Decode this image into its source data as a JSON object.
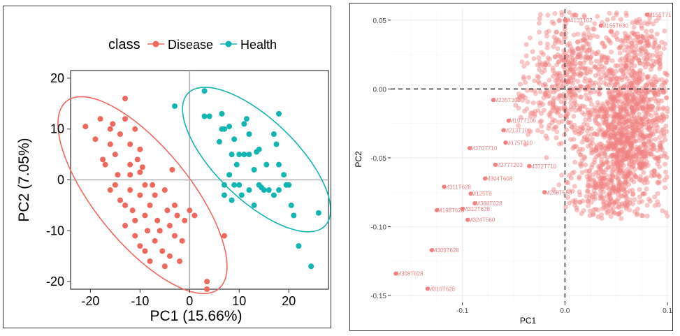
{
  "chart_data": [
    {
      "type": "scatter",
      "xlabel": "PC1 (15.66%)",
      "ylabel": "PC2 (7.05%)",
      "xlim": [
        -24,
        28
      ],
      "ylim": [
        -21.5,
        21.5
      ],
      "xticks": [
        -20,
        -10,
        0,
        10,
        20
      ],
      "yticks": [
        20,
        10,
        0,
        -10,
        -20
      ],
      "grid": false,
      "legend": {
        "title": "class",
        "position": "top-right"
      },
      "colors": {
        "Disease": "#f0685d",
        "Health": "#13b5b1"
      },
      "series": [
        {
          "name": "Disease",
          "color": "#f0685d",
          "points": [
            [
              -21,
              10.5
            ],
            [
              -19,
              8
            ],
            [
              -18,
              12
            ],
            [
              -17.5,
              4
            ],
            [
              -17,
              3
            ],
            [
              -16,
              10
            ],
            [
              -16,
              7
            ],
            [
              -16,
              -2
            ],
            [
              -15.5,
              11
            ],
            [
              -15,
              5
            ],
            [
              -15,
              -1
            ],
            [
              -14.5,
              1
            ],
            [
              -14,
              9
            ],
            [
              -14,
              -4
            ],
            [
              -13,
              16
            ],
            [
              -13,
              12
            ],
            [
              -13,
              -5
            ],
            [
              -13,
              -9
            ],
            [
              -12,
              7
            ],
            [
              -12,
              3
            ],
            [
              -12,
              1
            ],
            [
              -12,
              -2
            ],
            [
              -11.5,
              -6
            ],
            [
              -11,
              10
            ],
            [
              -11,
              -8
            ],
            [
              -11,
              -11
            ],
            [
              -10.5,
              4
            ],
            [
              -10,
              6
            ],
            [
              -10,
              1.5
            ],
            [
              -10,
              -3
            ],
            [
              -10,
              -13
            ],
            [
              -9.5,
              2.5
            ],
            [
              -9,
              -1
            ],
            [
              -9,
              -7
            ],
            [
              -9,
              -14
            ],
            [
              -8.5,
              -10
            ],
            [
              -8,
              -5
            ],
            [
              -8,
              -16
            ],
            [
              -7.5,
              -1
            ],
            [
              -7,
              -3
            ],
            [
              -7,
              -12
            ],
            [
              -6.5,
              -8
            ],
            [
              -6,
              -10
            ],
            [
              -5.5,
              -14
            ],
            [
              -5,
              -2
            ],
            [
              -5,
              -17
            ],
            [
              -4.5,
              -6
            ],
            [
              -4,
              -9
            ],
            [
              -4,
              -15
            ],
            [
              -3.5,
              2
            ],
            [
              -3,
              -5
            ],
            [
              -3,
              -11
            ],
            [
              -2.5,
              -7
            ],
            [
              -2,
              -16
            ],
            [
              -1.5,
              -12
            ],
            [
              -1,
              -8
            ],
            [
              0,
              -6
            ],
            [
              1,
              -7
            ],
            [
              3.5,
              -21.5
            ],
            [
              3.5,
              -20
            ],
            [
              7,
              -11
            ]
          ]
        },
        {
          "name": "Health",
          "color": "#13b5b1",
          "points": [
            [
              -3,
              14.5
            ],
            [
              3,
              17.5
            ],
            [
              3,
              12.5
            ],
            [
              4,
              12.5
            ],
            [
              6,
              7.5
            ],
            [
              6.5,
              13
            ],
            [
              6.5,
              10
            ],
            [
              7,
              10
            ],
            [
              7,
              -1
            ],
            [
              7,
              -3
            ],
            [
              8,
              10.5
            ],
            [
              8,
              1
            ],
            [
              8.5,
              5
            ],
            [
              8.5,
              -4
            ],
            [
              9,
              8
            ],
            [
              9,
              -1
            ],
            [
              9.5,
              3
            ],
            [
              10,
              5
            ],
            [
              10,
              -1
            ],
            [
              10.5,
              -3
            ],
            [
              11,
              5
            ],
            [
              11,
              11
            ],
            [
              11.5,
              12
            ],
            [
              12,
              5
            ],
            [
              12,
              -2
            ],
            [
              12,
              9
            ],
            [
              13,
              2
            ],
            [
              13,
              -5
            ],
            [
              13.5,
              5.5
            ],
            [
              14,
              -1
            ],
            [
              14,
              6
            ],
            [
              14.5,
              -1.5
            ],
            [
              15,
              -2
            ],
            [
              15.5,
              3
            ],
            [
              16,
              -2
            ],
            [
              17,
              9
            ],
            [
              17,
              -3
            ],
            [
              17.5,
              7
            ],
            [
              18,
              13
            ],
            [
              18,
              3
            ],
            [
              18,
              -2
            ],
            [
              19,
              1
            ],
            [
              19.5,
              -1
            ],
            [
              20,
              -1
            ],
            [
              20.5,
              -5
            ],
            [
              21,
              -7
            ],
            [
              22,
              -13
            ],
            [
              24.5,
              -17
            ],
            [
              26,
              -6.5
            ]
          ]
        }
      ],
      "ellipses": [
        {
          "series": "Disease",
          "center": [
            -9.5,
            -3
          ],
          "semi_axes": [
            24,
            9.5
          ],
          "angle_deg": -50,
          "color": "#f0685d"
        },
        {
          "series": "Health",
          "center": [
            13.5,
            4
          ],
          "semi_axes": [
            19,
            8
          ],
          "angle_deg": -43,
          "color": "#13b5b1"
        }
      ]
    },
    {
      "type": "scatter",
      "xlabel": "PC1",
      "ylabel": "PC2",
      "xlim": [
        -0.17,
        0.102
      ],
      "ylim": [
        -0.155,
        0.058
      ],
      "xticks": [
        -0.1,
        0.0,
        0.1
      ],
      "xtick_labels": [
        "-0.1",
        "0.0",
        "0.1"
      ],
      "yticks": [
        0.05,
        0.0,
        -0.05,
        -0.1,
        -0.15
      ],
      "ytick_labels": [
        "0.05",
        "0.00",
        "-0.05",
        "-0.10",
        "-0.15"
      ],
      "grid": true,
      "reference_lines": {
        "x": 0,
        "y": 0,
        "style": "dashed"
      },
      "color": "#f08080",
      "labeled_points": [
        {
          "label": "M308T628",
          "x": -0.165,
          "y": -0.134
        },
        {
          "label": "M310T628",
          "x": -0.134,
          "y": -0.145
        },
        {
          "label": "M309T628",
          "x": -0.13,
          "y": -0.117
        },
        {
          "label": "M198T628",
          "x": -0.125,
          "y": -0.088
        },
        {
          "label": "M311T628",
          "x": -0.118,
          "y": -0.071
        },
        {
          "label": "M312T628",
          "x": -0.1,
          "y": -0.087
        },
        {
          "label": "M324T560",
          "x": -0.095,
          "y": -0.095
        },
        {
          "label": "M368T628",
          "x": -0.088,
          "y": -0.083
        },
        {
          "label": "M125T6",
          "x": -0.092,
          "y": -0.076
        },
        {
          "label": "M304T608",
          "x": -0.078,
          "y": -0.065
        },
        {
          "label": "M370T710",
          "x": -0.093,
          "y": -0.043
        },
        {
          "label": "M377T203",
          "x": -0.068,
          "y": -0.055
        },
        {
          "label": "M175T110",
          "x": -0.058,
          "y": -0.039
        },
        {
          "label": "M213T106",
          "x": -0.06,
          "y": -0.03
        },
        {
          "label": "M197T106",
          "x": -0.055,
          "y": -0.023
        },
        {
          "label": "M235T105",
          "x": -0.07,
          "y": -0.008
        },
        {
          "label": "M372T710",
          "x": -0.035,
          "y": -0.056
        },
        {
          "label": "M268T553",
          "x": -0.02,
          "y": -0.075
        },
        {
          "label": "M155T630",
          "x": 0.035,
          "y": 0.046
        },
        {
          "label": "M155T71",
          "x": 0.08,
          "y": 0.054
        },
        {
          "label": "M413T102",
          "x": 0.0,
          "y": 0.05
        }
      ]
    }
  ]
}
